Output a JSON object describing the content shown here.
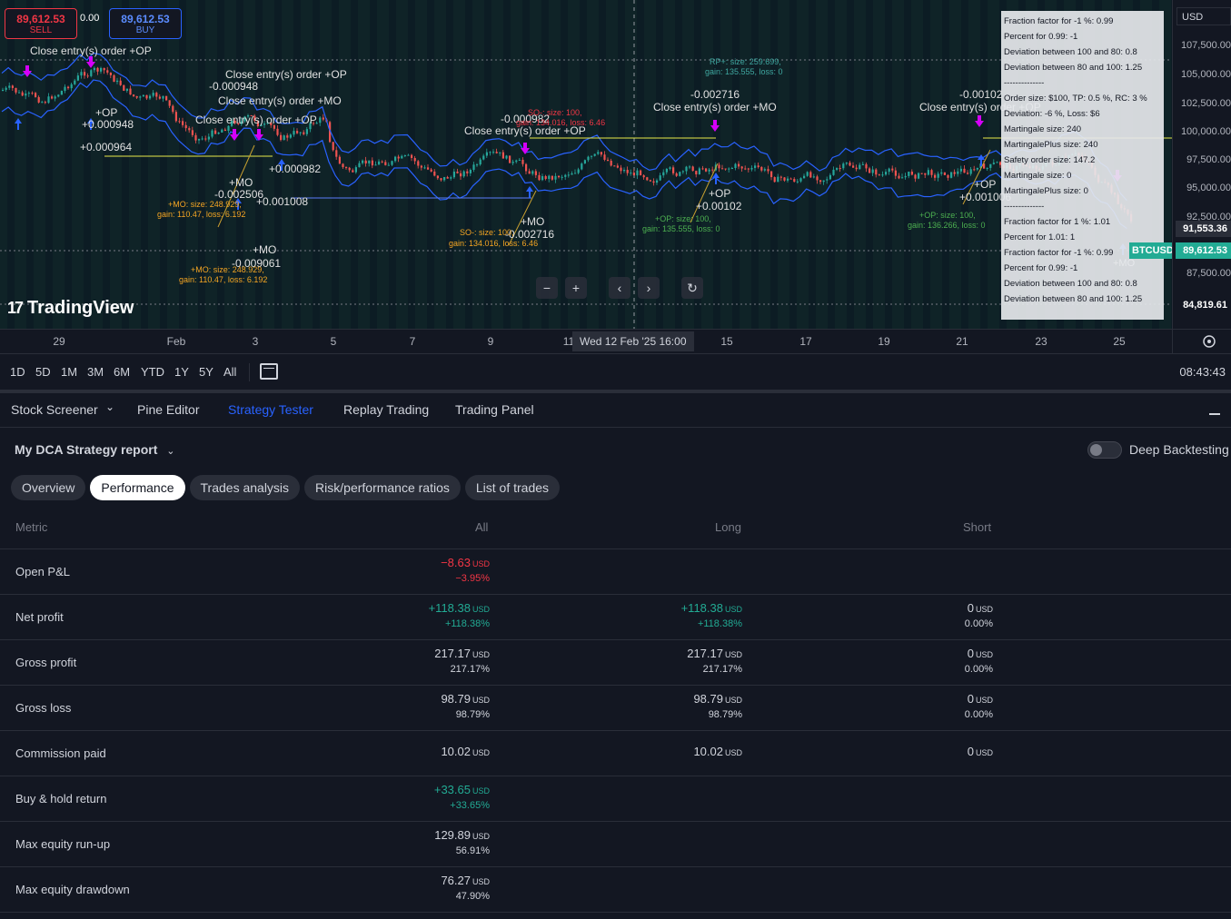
{
  "chart": {
    "sell_price": "89,612.53",
    "sell_label": "SELL",
    "buy_price": "89,612.53",
    "buy_label": "BUY",
    "spread": "0.00",
    "logo": "TradingView",
    "currency": "USD",
    "price_axis": [
      "107,500.00",
      "105,000.00",
      "102,500.00",
      "100,000.00",
      "97,500.00",
      "95,000.00",
      "92,500.00",
      "87,500.00"
    ],
    "tag_high": "91,553.36",
    "tag_symbol": "BTCUSD",
    "tag_last": "89,612.53",
    "tag_low": "84,819.61",
    "time_axis": [
      "29",
      "Feb",
      "3",
      "5",
      "7",
      "9",
      "11",
      "15",
      "17",
      "19",
      "21",
      "23",
      "25"
    ],
    "cursor_time": "Wed 12 Feb '25   16:00",
    "nav": {
      "minus": "−",
      "plus": "+",
      "left": "‹",
      "right": "›",
      "reset": "↻"
    },
    "annotations": {
      "close_op": "Close entry(s) order +OP",
      "close_mo": "Close entry(s) order +MO",
      "plus_op": "+OP",
      "plus_mo": "+MO",
      "v_002716": "-0.002716",
      "v_000982": "-0.000982",
      "v_00102": "-0.00102",
      "v_p00102": "+0.00102",
      "v_p001006": "+0.001006",
      "v_000948": "-0.000948",
      "v_p000948": "+0.000948",
      "v_p000964": "+0.000964",
      "v_009061": "-0.009061",
      "v_002506": "-0.002506",
      "v_p001008": "+0.001008",
      "v_p000982": "+0.000982",
      "v_002716b": "-0.002716",
      "rp_size": "RP+: size: 259.699,",
      "rp_gain": "gain: 135.555, loss: 0",
      "so_size": "SO-: size: 100,",
      "so_gain": "gain: 134.016, loss: 6.46",
      "mo_size": "+MO: size: 248.929,",
      "mo_gain": "gain: 110.47, loss: 6.192",
      "op_size": "+OP: size: 100,",
      "op_gain": "gain: 136.266, loss: 0"
    },
    "info_panel": [
      "Fraction factor for -1 %: 0.99",
      "Percent for 0.99: -1",
      "Deviation between 100 and 80: 0.8",
      "Deviation between 80 and 100: 1.25",
      "--------------",
      "Order size: $100, TP: 0.5 %, RC: 3 %",
      "Deviation: -6 %, Loss: $6",
      "Martingale size: 240",
      "MartingalePlus size: 240",
      "Safety order size: 147.2",
      "Martingale size: 0",
      "MartingalePlus size: 0",
      "--------------",
      "Fraction factor for 1 %: 1.01",
      "Percent for 1.01: 1",
      "Fraction factor for -1 %: 0.99",
      "Percent for 0.99: -1",
      "Deviation between 100 and 80: 0.8",
      "Deviation between 80 and 100: 1.25"
    ]
  },
  "range_bar": {
    "ranges": [
      "1D",
      "5D",
      "1M",
      "3M",
      "6M",
      "YTD",
      "1Y",
      "5Y",
      "All"
    ],
    "clock": "08:43:43"
  },
  "bottom_tabs": [
    "Stock Screener",
    "Pine Editor",
    "Strategy Tester",
    "Replay Trading",
    "Trading Panel"
  ],
  "strategy": {
    "title": "My DCA Strategy report",
    "deep_backtesting": "Deep Backtesting",
    "pills": [
      "Overview",
      "Performance",
      "Trades analysis",
      "Risk/performance ratios",
      "List of trades"
    ],
    "headers": {
      "metric": "Metric",
      "all": "All",
      "long": "Long",
      "short": "Short"
    },
    "unit": "USD",
    "rows": [
      {
        "metric": "Open P&L",
        "all": {
          "v": "−8.63",
          "p": "−3.95%",
          "c": "neg"
        }
      },
      {
        "metric": "Net profit",
        "all": {
          "v": "+118.38",
          "p": "+118.38%",
          "c": "pos"
        },
        "long": {
          "v": "+118.38",
          "p": "+118.38%",
          "c": "pos"
        },
        "short": {
          "v": "0",
          "p": "0.00%",
          "c": "neu"
        }
      },
      {
        "metric": "Gross profit",
        "all": {
          "v": "217.17",
          "p": "217.17%",
          "c": "neu"
        },
        "long": {
          "v": "217.17",
          "p": "217.17%",
          "c": "neu"
        },
        "short": {
          "v": "0",
          "p": "0.00%",
          "c": "neu"
        }
      },
      {
        "metric": "Gross loss",
        "all": {
          "v": "98.79",
          "p": "98.79%",
          "c": "neu"
        },
        "long": {
          "v": "98.79",
          "p": "98.79%",
          "c": "neu"
        },
        "short": {
          "v": "0",
          "p": "0.00%",
          "c": "neu"
        }
      },
      {
        "metric": "Commission paid",
        "all": {
          "v": "10.02",
          "c": "neu"
        },
        "long": {
          "v": "10.02",
          "c": "neu"
        },
        "short": {
          "v": "0",
          "c": "neu"
        }
      },
      {
        "metric": "Buy & hold return",
        "all": {
          "v": "+33.65",
          "p": "+33.65%",
          "c": "pos"
        }
      },
      {
        "metric": "Max equity run-up",
        "all": {
          "v": "129.89",
          "p": "56.91%",
          "c": "neu"
        }
      },
      {
        "metric": "Max equity drawdown",
        "all": {
          "v": "76.27",
          "p": "47.90%",
          "c": "neu"
        }
      }
    ]
  },
  "colors": {
    "accent": "#2962ff",
    "negative": "#f23645",
    "positive": "#22ab94",
    "chart_bg": "#0f2327",
    "panel_bg": "#131722"
  }
}
